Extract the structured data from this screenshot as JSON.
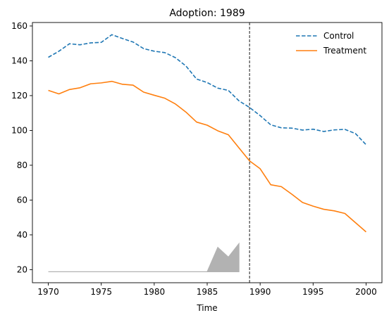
{
  "chart_data": {
    "type": "line",
    "title": "Adoption: 1989",
    "xlabel": "Time",
    "ylabel": "",
    "xlim": [
      1968.5,
      2001.5
    ],
    "ylim": [
      12.5,
      162
    ],
    "xticks": [
      1970,
      1975,
      1980,
      1985,
      1990,
      1995,
      2000
    ],
    "yticks": [
      20,
      40,
      60,
      80,
      100,
      120,
      140,
      160
    ],
    "x": [
      1970,
      1971,
      1972,
      1973,
      1974,
      1975,
      1976,
      1977,
      1978,
      1979,
      1980,
      1981,
      1982,
      1983,
      1984,
      1985,
      1986,
      1987,
      1988,
      1989,
      1990,
      1991,
      1992,
      1993,
      1994,
      1995,
      1996,
      1997,
      1998,
      1999,
      2000
    ],
    "series": [
      {
        "name": "Control",
        "style": "dashed",
        "color": "#1f77b4",
        "values": [
          142,
          145.5,
          149.8,
          149.2,
          150.3,
          150.6,
          155,
          152.8,
          150.8,
          147,
          145.5,
          144.7,
          141.8,
          137,
          129.5,
          127.5,
          124.3,
          123,
          117,
          113.2,
          108.5,
          103.2,
          101.5,
          101.3,
          100.2,
          100.7,
          99.4,
          100.3,
          100.6,
          98.2,
          91.8
        ]
      },
      {
        "name": "Treatment",
        "style": "solid",
        "color": "#ff7f0e",
        "values": [
          123,
          121,
          123.5,
          124.5,
          126.8,
          127.3,
          128.2,
          126.5,
          126,
          122,
          120.2,
          118.5,
          115.2,
          110.5,
          104.8,
          103,
          99.8,
          97.5,
          90,
          82.5,
          78,
          68.8,
          67.7,
          63.3,
          58.6,
          56.5,
          54.7,
          53.8,
          52.3,
          47,
          41.7
        ]
      }
    ],
    "band": {
      "color": "#b2b2b2",
      "x": [
        1970,
        1985,
        1986,
        1987,
        1988
      ],
      "baseline": 18.8,
      "values": [
        18.8,
        18.8,
        32.8,
        27.2,
        35
      ]
    },
    "vline": {
      "x": 1989,
      "style": "dashed",
      "color": "#000000"
    },
    "grid": false,
    "legend_position": "top-right"
  }
}
